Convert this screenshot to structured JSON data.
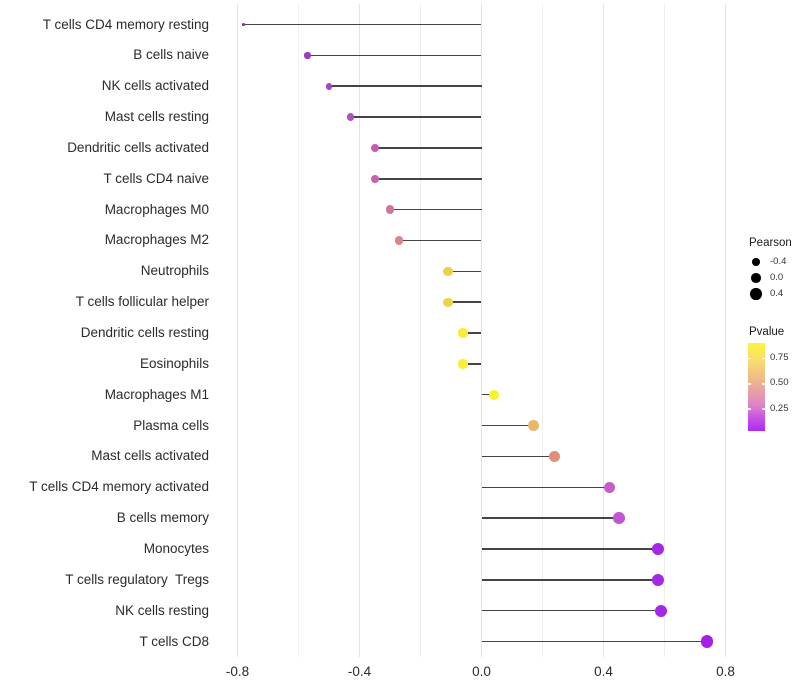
{
  "chart_data": {
    "type": "scatter",
    "variant": "lollipop",
    "orientation": "horizontal",
    "title": "",
    "xlabel": "",
    "ylabel": "",
    "xlim": [
      -0.88,
      0.84
    ],
    "grid": "vertical-only",
    "x_ticks": [
      {
        "label": "-0.8",
        "value": -0.8
      },
      {
        "label": "-0.4",
        "value": -0.4
      },
      {
        "label": "0.0",
        "value": 0.0
      },
      {
        "label": "0.4",
        "value": 0.4
      },
      {
        "label": "0.8",
        "value": 0.8
      }
    ],
    "x_minor_ticks": [
      -0.6,
      -0.2,
      0.2,
      0.6
    ],
    "rows": [
      {
        "label": "T cells CD4 memory resting",
        "pearson": -0.78,
        "dot_color": "#8E2BBE"
      },
      {
        "label": "B cells naive",
        "pearson": -0.57,
        "dot_color": "#9C3AC2"
      },
      {
        "label": "NK cells activated",
        "pearson": -0.5,
        "dot_color": "#A743C6"
      },
      {
        "label": "Mast cells resting",
        "pearson": -0.43,
        "dot_color": "#B44FC2"
      },
      {
        "label": "Dendritic cells activated",
        "pearson": -0.35,
        "dot_color": "#C55CB4"
      },
      {
        "label": "T cells CD4 naive",
        "pearson": -0.35,
        "dot_color": "#C860B0"
      },
      {
        "label": "Macrophages M0",
        "pearson": -0.3,
        "dot_color": "#D1739D"
      },
      {
        "label": "Macrophages M2",
        "pearson": -0.27,
        "dot_color": "#DC8489"
      },
      {
        "label": "Neutrophils",
        "pearson": -0.11,
        "dot_color": "#EDD14B"
      },
      {
        "label": "T cells follicular helper",
        "pearson": -0.11,
        "dot_color": "#EDD24C"
      },
      {
        "label": "Dendritic cells resting",
        "pearson": -0.06,
        "dot_color": "#F7EE33"
      },
      {
        "label": "Eosinophils",
        "pearson": -0.06,
        "dot_color": "#F8EF32"
      },
      {
        "label": "Macrophages M1",
        "pearson": 0.04,
        "dot_color": "#FAF22B"
      },
      {
        "label": "Plasma cells",
        "pearson": 0.17,
        "dot_color": "#EDB667"
      },
      {
        "label": "Mast cells activated",
        "pearson": 0.24,
        "dot_color": "#E28F79"
      },
      {
        "label": "T cells CD4 memory activated",
        "pearson": 0.42,
        "dot_color": "#C55DCA"
      },
      {
        "label": "B cells memory",
        "pearson": 0.45,
        "dot_color": "#C156CE"
      },
      {
        "label": "Monocytes",
        "pearson": 0.58,
        "dot_color": "#A32AE2"
      },
      {
        "label": "T cells regulatory  Tregs",
        "pearson": 0.58,
        "dot_color": "#A32AE2"
      },
      {
        "label": "NK cells resting",
        "pearson": 0.59,
        "dot_color": "#A428E5"
      },
      {
        "label": "T cells CD8",
        "pearson": 0.74,
        "dot_color": "#A51FE9"
      }
    ],
    "size_legend": {
      "title": "Pearson",
      "dot_color": "#000000",
      "entries": [
        {
          "label": "-0.4",
          "value": -0.4
        },
        {
          "label": "0.0",
          "value": 0.0
        },
        {
          "label": "0.4",
          "value": 0.4
        }
      ]
    },
    "color_legend": {
      "title": "Pvalue",
      "tick_labels": [
        "0.75",
        "0.50",
        "0.25"
      ],
      "gradient": [
        {
          "color": "#FCF53B",
          "pos": 0
        },
        {
          "color": "#F7DE6D",
          "pos": 20
        },
        {
          "color": "#EEB28F",
          "pos": 45
        },
        {
          "color": "#DE85C8",
          "pos": 70
        },
        {
          "color": "#C14BE8",
          "pos": 88
        },
        {
          "color": "#AE2BF3",
          "pos": 100
        }
      ]
    },
    "colors": {
      "background": "#FFFFFF",
      "stem": "#454545",
      "grid_major": "#E4E4E4",
      "grid_minor": "#EFEFEF",
      "axis_text": "#2B2B2B",
      "legend_text": "#1A1A1A"
    }
  }
}
